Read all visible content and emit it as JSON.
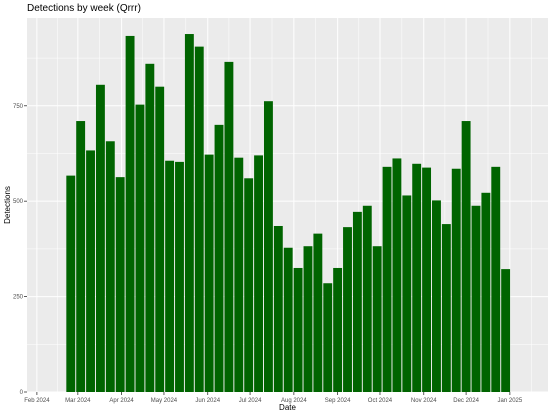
{
  "chart_data": {
    "type": "bar",
    "title": "Detections by week (Qrrr)",
    "xlabel": "Date",
    "ylabel": "Detections",
    "ylim": [
      0,
      980
    ],
    "xlim": [
      "2024-01-25",
      "2025-01-28"
    ],
    "y_ticks": [
      0,
      250,
      500,
      750
    ],
    "x_ticks": [
      {
        "date": "2024-02-01",
        "label": "Feb 2024"
      },
      {
        "date": "2024-03-01",
        "label": "Mar 2024"
      },
      {
        "date": "2024-04-01",
        "label": "Apr 2024"
      },
      {
        "date": "2024-05-01",
        "label": "May 2024"
      },
      {
        "date": "2024-06-01",
        "label": "Jun 2024"
      },
      {
        "date": "2024-07-01",
        "label": "Jul 2024"
      },
      {
        "date": "2024-08-01",
        "label": "Aug 2024"
      },
      {
        "date": "2024-09-01",
        "label": "Sep 2024"
      },
      {
        "date": "2024-10-01",
        "label": "Oct 2024"
      },
      {
        "date": "2024-11-01",
        "label": "Nov 2024"
      },
      {
        "date": "2024-12-01",
        "label": "Dec 2024"
      },
      {
        "date": "2025-01-01",
        "label": "Jan 2025"
      }
    ],
    "x": [
      "2024-02-25",
      "2024-03-03",
      "2024-03-10",
      "2024-03-17",
      "2024-03-24",
      "2024-03-31",
      "2024-04-07",
      "2024-04-14",
      "2024-04-21",
      "2024-04-28",
      "2024-05-05",
      "2024-05-12",
      "2024-05-19",
      "2024-05-26",
      "2024-06-02",
      "2024-06-09",
      "2024-06-16",
      "2024-06-23",
      "2024-06-30",
      "2024-07-07",
      "2024-07-14",
      "2024-07-21",
      "2024-07-28",
      "2024-08-04",
      "2024-08-11",
      "2024-08-18",
      "2024-08-25",
      "2024-09-01",
      "2024-09-08",
      "2024-09-15",
      "2024-09-22",
      "2024-09-29",
      "2024-10-06",
      "2024-10-13",
      "2024-10-20",
      "2024-10-27",
      "2024-11-03",
      "2024-11-10",
      "2024-11-17",
      "2024-11-24",
      "2024-12-01",
      "2024-12-08",
      "2024-12-15",
      "2024-12-22",
      "2024-12-29"
    ],
    "values": [
      567,
      710,
      633,
      805,
      657,
      563,
      933,
      753,
      860,
      800,
      606,
      603,
      938,
      905,
      622,
      700,
      865,
      614,
      560,
      620,
      762,
      435,
      378,
      325,
      382,
      415,
      285,
      325,
      432,
      472,
      488,
      382,
      590,
      612,
      515,
      598,
      588,
      502,
      440,
      585,
      710,
      488,
      522,
      590,
      322
    ],
    "bar_color": "#006400",
    "panel_background": "#ebebeb",
    "grid": true,
    "grid_color": "#ffffff"
  }
}
